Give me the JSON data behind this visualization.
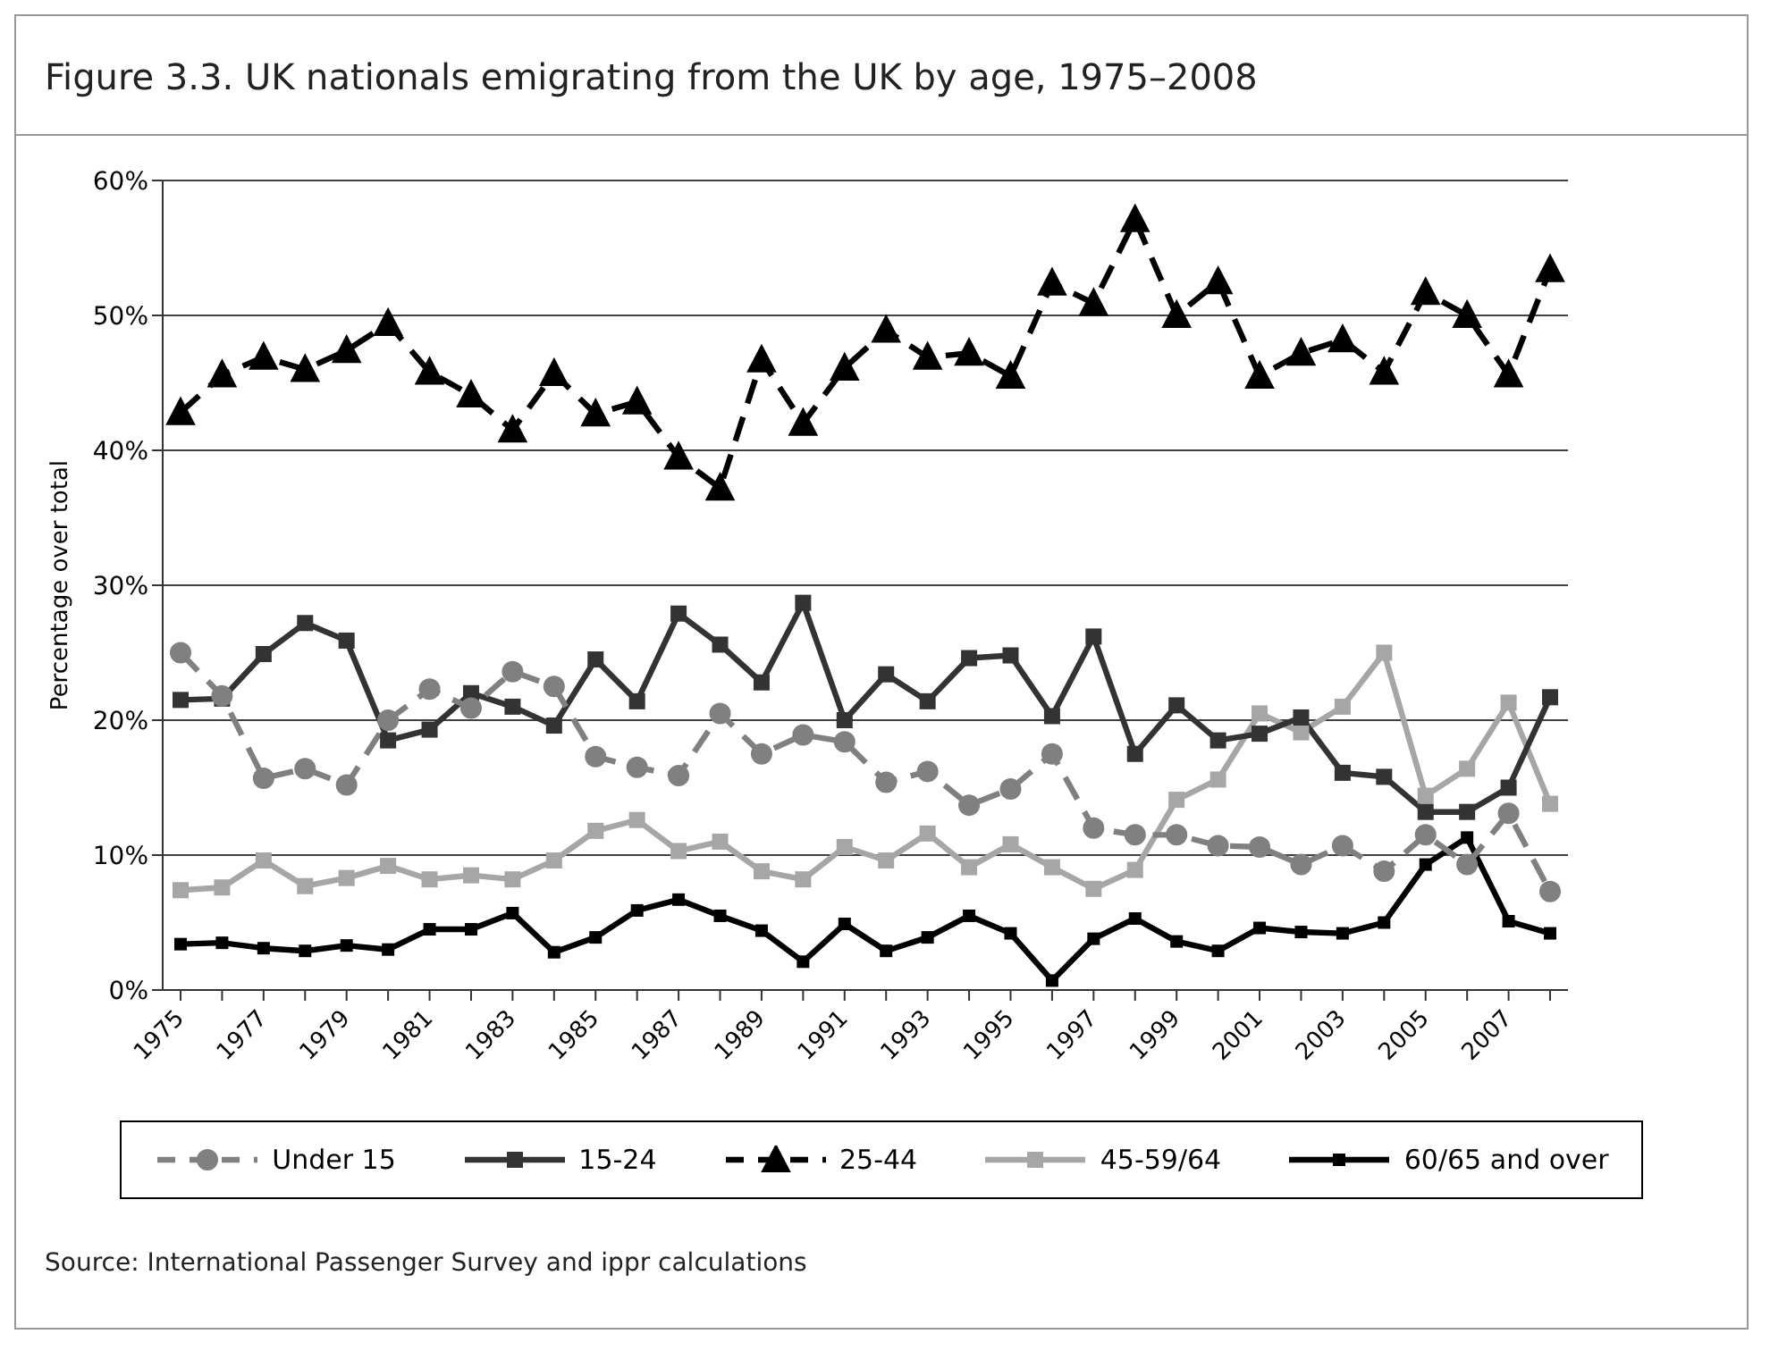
{
  "chart_data": {
    "type": "line",
    "title": "Figure 3.3. UK nationals emigrating from the UK by age, 1975–2008",
    "ylabel": "Percentage over total",
    "categories": [
      "1975",
      null,
      "1977",
      null,
      "1979",
      null,
      "1981",
      null,
      "1983",
      null,
      "1985",
      null,
      "1987",
      null,
      "1989",
      null,
      "1991",
      null,
      "1993",
      null,
      "1995",
      null,
      "1997",
      null,
      "1999",
      null,
      "2001",
      null,
      "2003",
      null,
      "2005",
      null,
      "2007",
      null
    ],
    "series": [
      {
        "name": "Under 15",
        "color": "#808080",
        "marker": "circle",
        "line_style": "dashed",
        "values": [
          25,
          21.8,
          15.7,
          16.4,
          15.2,
          20,
          22.3,
          20.9,
          23.6,
          22.5,
          17.3,
          16.5,
          15.9,
          20.5,
          17.5,
          18.9,
          18.4,
          15.4,
          16.2,
          13.7,
          14.9,
          17.5,
          12,
          11.5,
          11.5,
          10.7,
          10.6,
          9.3,
          10.7,
          8.8,
          11.5,
          9.3,
          13.1,
          7.3
        ]
      },
      {
        "name": "15-24",
        "color": "#333333",
        "marker": "square",
        "line_style": "solid",
        "values": [
          21.5,
          21.6,
          24.9,
          27.2,
          25.9,
          18.5,
          19.3,
          22,
          21,
          19.6,
          24.5,
          21.4,
          27.9,
          25.6,
          22.8,
          28.7,
          20,
          23.4,
          21.4,
          24.6,
          24.8,
          20.3,
          26.2,
          17.5,
          21.1,
          18.5,
          19,
          20.2,
          16.1,
          15.8,
          13.2,
          13.2,
          15,
          21.7
        ]
      },
      {
        "name": "25-44",
        "color": "#000000",
        "marker": "triangle",
        "line_style": "dashed",
        "values": [
          42.8,
          45.6,
          46.9,
          46,
          47.4,
          49.4,
          45.8,
          44.1,
          41.5,
          45.7,
          42.7,
          43.6,
          39.5,
          37.2,
          46.7,
          42,
          46.1,
          48.9,
          46.9,
          47.2,
          45.5,
          52.4,
          50.9,
          57.1,
          50,
          52.5,
          45.5,
          47.2,
          48.2,
          45.8,
          51.7,
          50,
          45.6,
          53.4
        ]
      },
      {
        "name": "45-59/64",
        "color": "#a6a6a6",
        "marker": "square",
        "line_style": "solid",
        "values": [
          7.4,
          7.6,
          9.6,
          7.7,
          8.3,
          9.2,
          8.2,
          8.5,
          8.2,
          9.6,
          11.8,
          12.6,
          10.3,
          11,
          8.8,
          8.2,
          10.6,
          9.6,
          11.6,
          9.1,
          10.8,
          9.1,
          7.5,
          8.9,
          14.1,
          15.6,
          20.5,
          19.1,
          21,
          25,
          14.4,
          16.4,
          21.3,
          13.8
        ]
      },
      {
        "name": "60/65 and over",
        "color": "#000000",
        "marker": "square",
        "line_style": "solid",
        "values": [
          3.4,
          3.5,
          3.1,
          2.9,
          3.3,
          3,
          4.5,
          4.5,
          5.7,
          2.8,
          3.9,
          5.9,
          6.7,
          5.5,
          4.4,
          2.1,
          4.9,
          2.9,
          3.9,
          5.5,
          4.2,
          0.7,
          3.8,
          5.3,
          3.6,
          2.9,
          4.6,
          4.3,
          4.2,
          5,
          9.3,
          11.3,
          5.1,
          4.2
        ]
      }
    ],
    "ylim": [
      0,
      60
    ],
    "yticks": [
      {
        "value": 0,
        "label": "0%"
      },
      {
        "value": 10,
        "label": "10%"
      },
      {
        "value": 20,
        "label": "20%"
      },
      {
        "value": 30,
        "label": "30%"
      },
      {
        "value": 40,
        "label": "40%"
      },
      {
        "value": 50,
        "label": "50%"
      },
      {
        "value": 60,
        "label": "60%"
      }
    ],
    "grid": "y",
    "legend": "bottom",
    "annotations": [
      "Source: International Passenger Survey and ippr calculations"
    ]
  }
}
